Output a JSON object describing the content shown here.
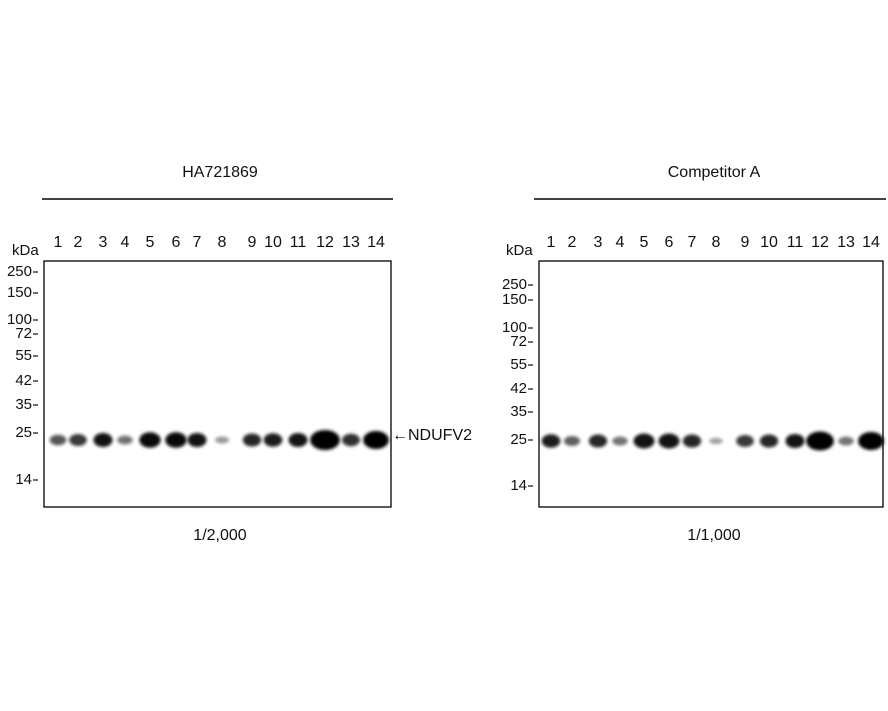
{
  "panels": [
    {
      "title": "HA721869",
      "kda_label": "kDa",
      "lanes": [
        "1",
        "2",
        "3",
        "4",
        "5",
        "6",
        "7",
        "8",
        "9",
        "10",
        "11",
        "12",
        "13",
        "14"
      ],
      "markers": [
        "250",
        "150",
        "100",
        "72",
        "55",
        "42",
        "35",
        "25",
        "14"
      ],
      "band_label": "←NDUFV2",
      "dilution": "1/2,000"
    },
    {
      "title": "Competitor A",
      "kda_label": "kDa",
      "lanes": [
        "1",
        "2",
        "3",
        "4",
        "5",
        "6",
        "7",
        "8",
        "9",
        "10",
        "11",
        "12",
        "13",
        "14"
      ],
      "markers": [
        "250",
        "150",
        "100",
        "72",
        "55",
        "42",
        "35",
        "25",
        "14"
      ],
      "dilution": "1/1,000"
    }
  ]
}
